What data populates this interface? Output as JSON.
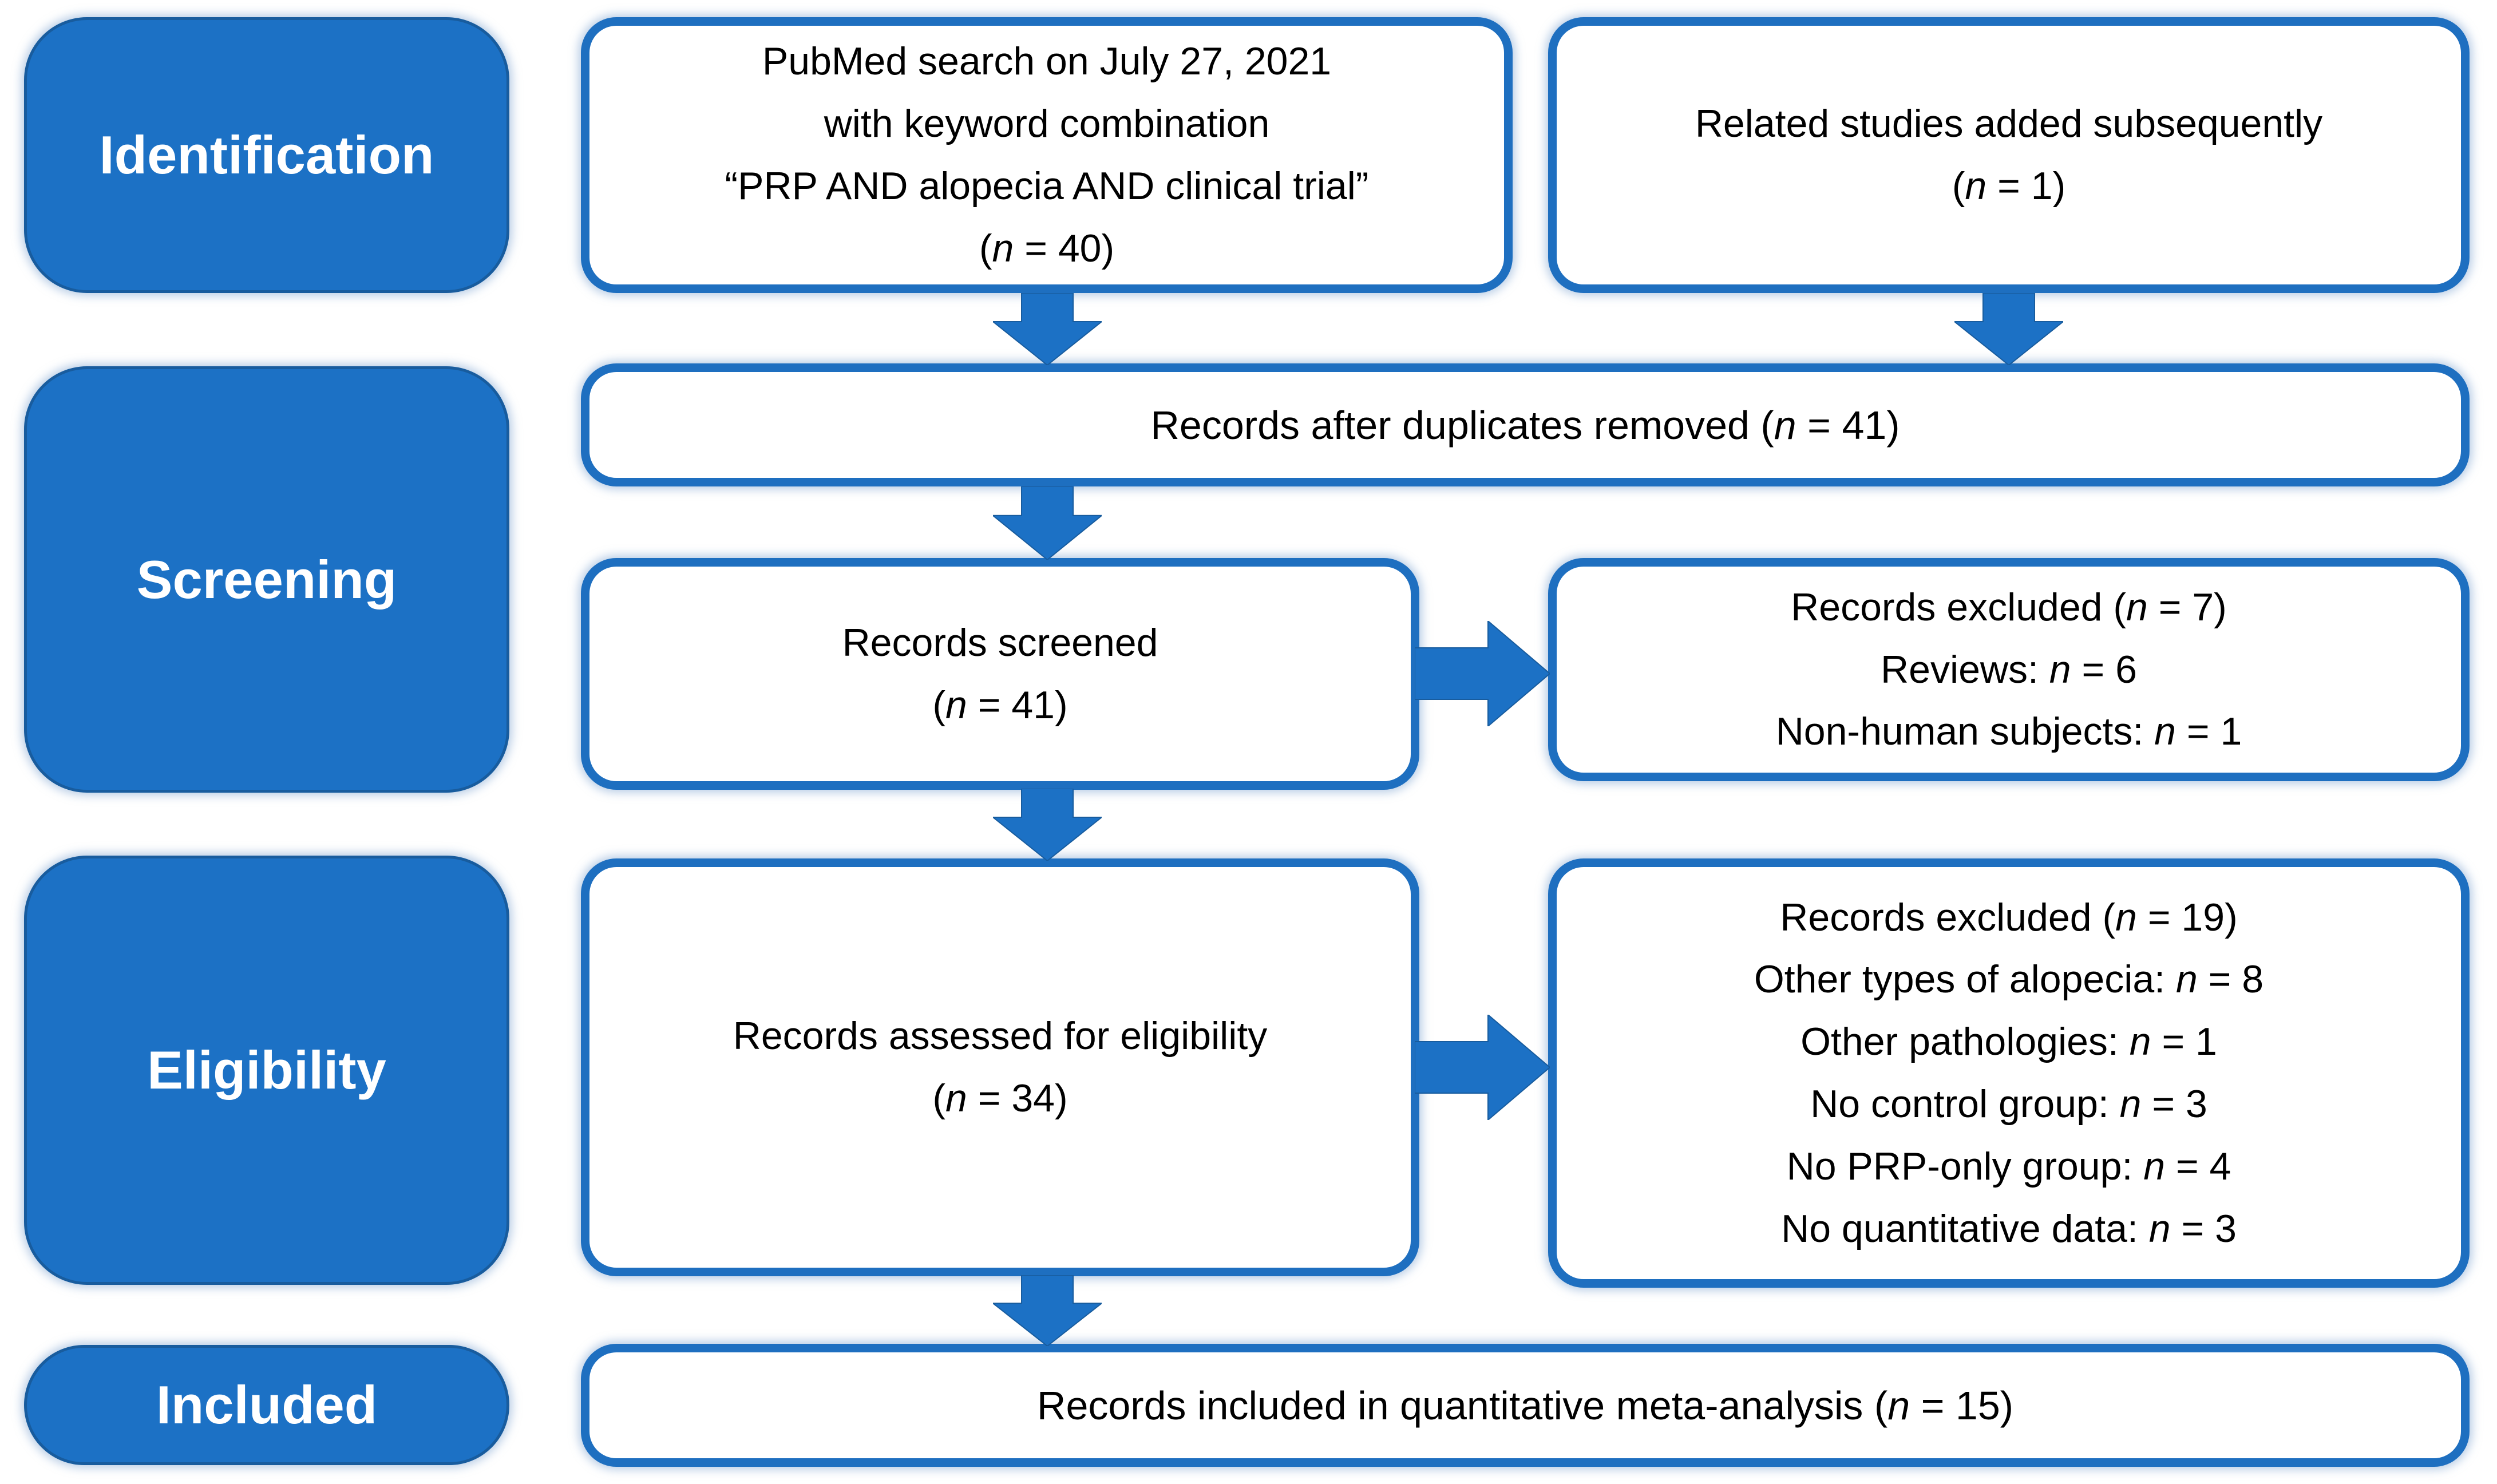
{
  "palette": {
    "fill_blue": "#1C71C5",
    "border_blue": "#1E6FC0",
    "edge_dark": "#185C9E",
    "glow_blue": "#AEC8E8",
    "text": "#000000",
    "stage_text": "#FFFFFF"
  },
  "stages": [
    {
      "label": "Identification"
    },
    {
      "label": "Screening"
    },
    {
      "label": "Eligibility"
    },
    {
      "label": "Included"
    }
  ],
  "boxes": {
    "pubmed_search": {
      "lines": [
        "PubMed search on July 27, 2021",
        "with keyword combination",
        "“PRP AND alopecia AND clinical trial”",
        "(n = 40)"
      ]
    },
    "related_studies": {
      "lines": [
        "Related studies added subsequently",
        "(n = 1)"
      ]
    },
    "duplicates_removed": {
      "lines": [
        "Records after duplicates removed (n = 41)"
      ]
    },
    "records_screened": {
      "lines": [
        "Records screened",
        "(n = 41)"
      ]
    },
    "records_excluded_screening": {
      "lines": [
        "Records excluded (n = 7)",
        "Reviews: n = 6",
        "Non-human subjects: n = 1"
      ]
    },
    "records_assessed": {
      "lines": [
        "Records assessed for eligibility",
        "(n = 34)"
      ]
    },
    "records_excluded_eligibility": {
      "lines": [
        "Records excluded (n = 19)",
        "Other types of alopecia: n = 8",
        "Other pathologies: n = 1",
        "No control group: n = 3",
        "No PRP-only group: n = 4",
        "No quantitative data: n = 3"
      ]
    },
    "included_meta_analysis": {
      "lines": [
        "Records included in quantitative meta-analysis (n = 15)"
      ]
    }
  }
}
